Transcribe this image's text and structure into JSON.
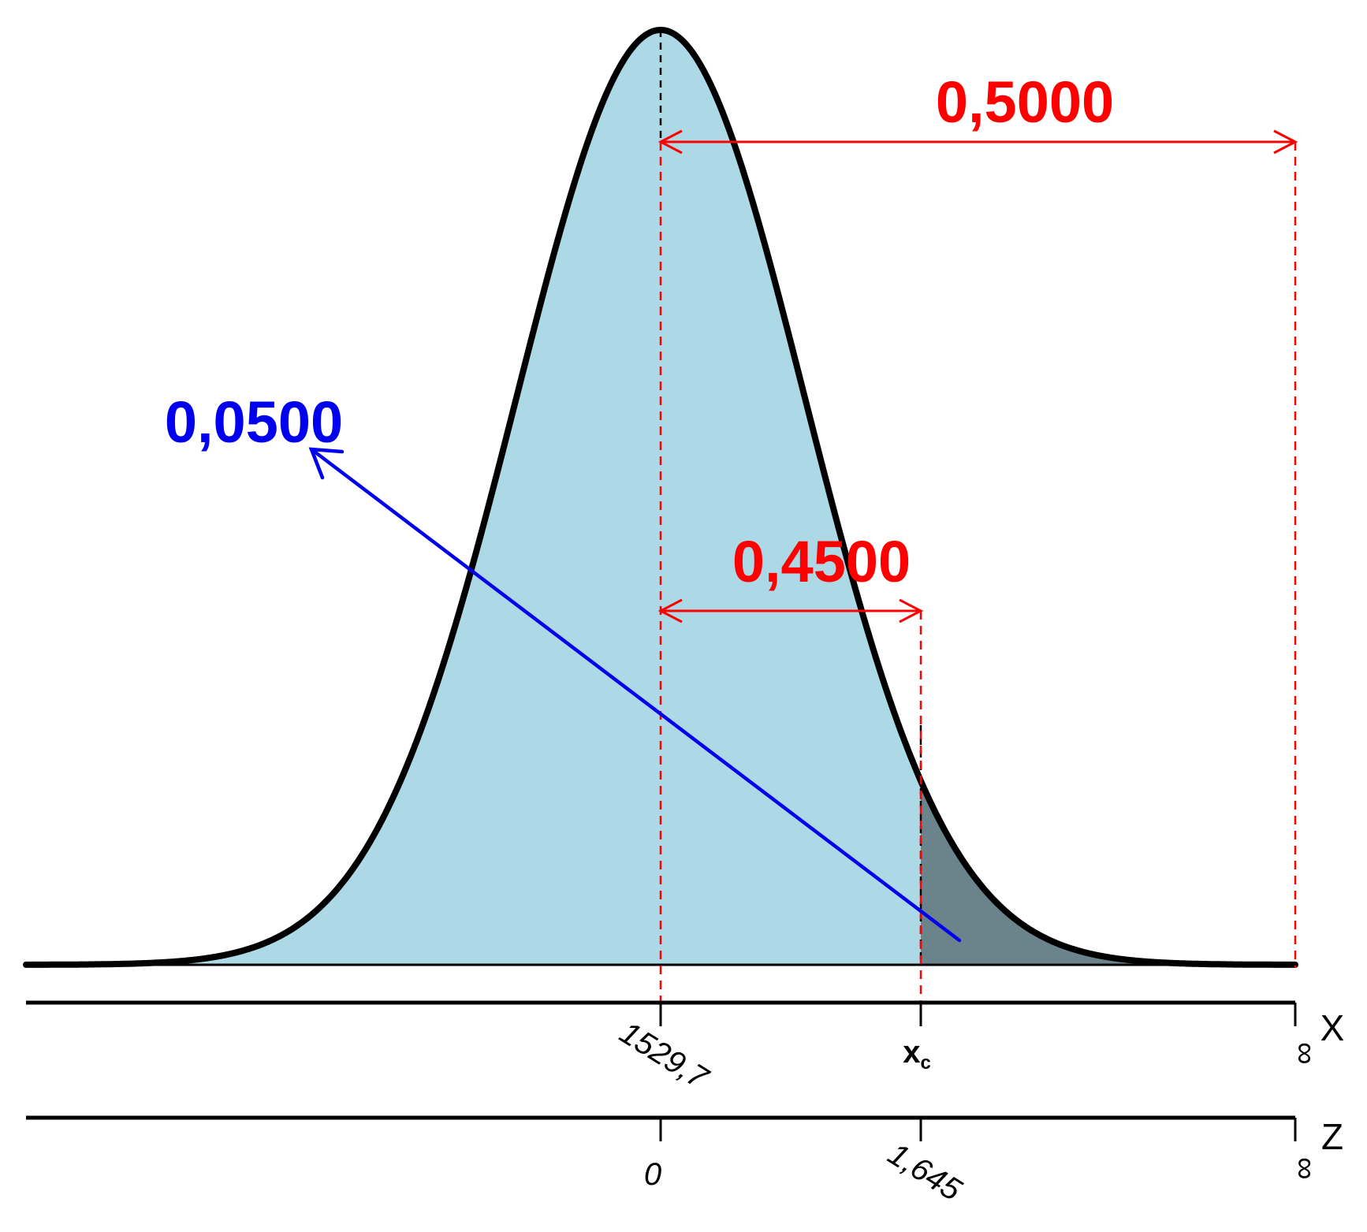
{
  "colors": {
    "body_fill": "#ADD8E6",
    "tail_fill": "#6B838A",
    "curve": "#000000",
    "red": "#FF0000",
    "blue": "#0000EE"
  },
  "labels": {
    "prob_right_half": "0,5000",
    "prob_between": "0,4500",
    "prob_tail": "0,0500"
  },
  "x_axis": {
    "name": "X",
    "tick_mean": "1529,7",
    "tick_crit_base": "x",
    "tick_crit_sub": "c",
    "tick_inf": "∞"
  },
  "z_axis": {
    "name": "Z",
    "tick_zero": "0",
    "tick_crit": "1,645",
    "tick_inf": "∞"
  }
}
